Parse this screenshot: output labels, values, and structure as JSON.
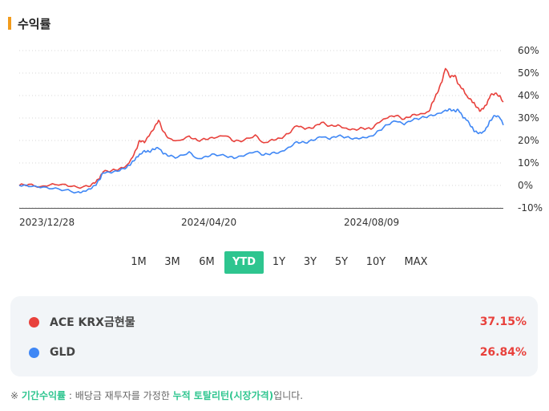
{
  "section": {
    "title": "수익률"
  },
  "chart_data": {
    "type": "line",
    "ylim": [
      -10,
      60
    ],
    "y_ticks": [
      60,
      50,
      40,
      30,
      20,
      10,
      0,
      -10
    ],
    "y_tick_labels": [
      "60%",
      "50%",
      "40%",
      "30%",
      "20%",
      "10%",
      "0%",
      "-10%"
    ],
    "x_tick_labels": [
      "2023/12/28",
      "2024/04/20",
      "2024/08/09"
    ],
    "grid": true,
    "series": [
      {
        "name": "ACE KRX금현물",
        "color": "#e8413c",
        "points": [
          [
            "2023-12-28",
            0
          ],
          [
            "2024-01-05",
            0.5
          ],
          [
            "2024-01-15",
            -0.5
          ],
          [
            "2024-01-25",
            0.8
          ],
          [
            "2024-02-05",
            0.5
          ],
          [
            "2024-02-15",
            -0.8
          ],
          [
            "2024-02-25",
            -0.5
          ],
          [
            "2024-03-01",
            1.0
          ],
          [
            "2024-03-05",
            3
          ],
          [
            "2024-03-08",
            6
          ],
          [
            "2024-03-15",
            6.5
          ],
          [
            "2024-03-22",
            7.5
          ],
          [
            "2024-03-28",
            9
          ],
          [
            "2024-04-01",
            12
          ],
          [
            "2024-04-05",
            16
          ],
          [
            "2024-04-08",
            20
          ],
          [
            "2024-04-12",
            19
          ],
          [
            "2024-04-16",
            22
          ],
          [
            "2024-04-20",
            25
          ],
          [
            "2024-04-24",
            29
          ],
          [
            "2024-04-28",
            24
          ],
          [
            "2024-05-03",
            21
          ],
          [
            "2024-05-10",
            20
          ],
          [
            "2024-05-20",
            22
          ],
          [
            "2024-05-27",
            20
          ],
          [
            "2024-06-03",
            20.5
          ],
          [
            "2024-06-10",
            21
          ],
          [
            "2024-06-20",
            22
          ],
          [
            "2024-06-27",
            19.5
          ],
          [
            "2024-07-05",
            20
          ],
          [
            "2024-07-15",
            22.5
          ],
          [
            "2024-07-22",
            19
          ],
          [
            "2024-07-29",
            20.5
          ],
          [
            "2024-08-05",
            21
          ],
          [
            "2024-08-12",
            23
          ],
          [
            "2024-08-19",
            26.5
          ],
          [
            "2024-08-26",
            25
          ],
          [
            "2024-09-02",
            25.5
          ],
          [
            "2024-09-09",
            28
          ],
          [
            "2024-09-16",
            26.5
          ],
          [
            "2024-09-23",
            27
          ],
          [
            "2024-09-30",
            25.5
          ],
          [
            "2024-10-07",
            25
          ],
          [
            "2024-10-14",
            25.5
          ],
          [
            "2024-10-21",
            25
          ],
          [
            "2024-10-28",
            28
          ],
          [
            "2024-11-04",
            30
          ],
          [
            "2024-11-11",
            31
          ],
          [
            "2024-11-18",
            29.5
          ],
          [
            "2024-11-25",
            31.5
          ],
          [
            "2024-12-02",
            32
          ],
          [
            "2024-12-09",
            33
          ],
          [
            "2024-12-12",
            37
          ],
          [
            "2024-12-16",
            41
          ],
          [
            "2024-12-20",
            46
          ],
          [
            "2024-12-23",
            52
          ],
          [
            "2024-12-27",
            48
          ],
          [
            "2024-12-31",
            49
          ],
          [
            "2025-01-03",
            45
          ],
          [
            "2025-01-07",
            43
          ],
          [
            "2025-01-10",
            40
          ],
          [
            "2025-01-14",
            38
          ],
          [
            "2025-01-17",
            36
          ],
          [
            "2025-01-21",
            33
          ],
          [
            "2025-01-24",
            34
          ],
          [
            "2025-01-27",
            36
          ],
          [
            "2025-01-30",
            40
          ],
          [
            "2025-02-03",
            41
          ],
          [
            "2025-02-07",
            40
          ],
          [
            "2025-02-10",
            37.15
          ]
        ]
      },
      {
        "name": "GLD",
        "color": "#3f87f5",
        "points": [
          [
            "2023-12-28",
            0
          ],
          [
            "2024-01-05",
            -0.5
          ],
          [
            "2024-01-15",
            -1
          ],
          [
            "2024-01-25",
            -1.5
          ],
          [
            "2024-02-05",
            -2
          ],
          [
            "2024-02-15",
            -3
          ],
          [
            "2024-02-20",
            -2.5
          ],
          [
            "2024-02-25",
            -1.5
          ],
          [
            "2024-03-01",
            0
          ],
          [
            "2024-03-05",
            2.5
          ],
          [
            "2024-03-08",
            5.5
          ],
          [
            "2024-03-15",
            5.5
          ],
          [
            "2024-03-22",
            6.5
          ],
          [
            "2024-03-28",
            8
          ],
          [
            "2024-04-01",
            10
          ],
          [
            "2024-04-05",
            12.5
          ],
          [
            "2024-04-08",
            14
          ],
          [
            "2024-04-12",
            15.5
          ],
          [
            "2024-04-16",
            15
          ],
          [
            "2024-04-20",
            16
          ],
          [
            "2024-04-24",
            16.5
          ],
          [
            "2024-04-28",
            14
          ],
          [
            "2024-05-03",
            13
          ],
          [
            "2024-05-10",
            12.5
          ],
          [
            "2024-05-20",
            15
          ],
          [
            "2024-05-27",
            12
          ],
          [
            "2024-06-03",
            13
          ],
          [
            "2024-06-10",
            14
          ],
          [
            "2024-06-20",
            13
          ],
          [
            "2024-06-27",
            12
          ],
          [
            "2024-07-05",
            13
          ],
          [
            "2024-07-15",
            15
          ],
          [
            "2024-07-22",
            13.5
          ],
          [
            "2024-07-29",
            14.5
          ],
          [
            "2024-08-05",
            15
          ],
          [
            "2024-08-12",
            17
          ],
          [
            "2024-08-19",
            19.5
          ],
          [
            "2024-08-26",
            19
          ],
          [
            "2024-09-02",
            20
          ],
          [
            "2024-09-09",
            21.5
          ],
          [
            "2024-09-16",
            20.5
          ],
          [
            "2024-09-23",
            22
          ],
          [
            "2024-09-30",
            21.5
          ],
          [
            "2024-10-07",
            21
          ],
          [
            "2024-10-14",
            21.5
          ],
          [
            "2024-10-21",
            22
          ],
          [
            "2024-10-28",
            24.5
          ],
          [
            "2024-11-04",
            27
          ],
          [
            "2024-11-11",
            28.5
          ],
          [
            "2024-11-18",
            27
          ],
          [
            "2024-11-25",
            29
          ],
          [
            "2024-12-02",
            30
          ],
          [
            "2024-12-09",
            31
          ],
          [
            "2024-12-16",
            32
          ],
          [
            "2024-12-23",
            33.5
          ],
          [
            "2024-12-27",
            34
          ],
          [
            "2024-12-31",
            33
          ],
          [
            "2025-01-03",
            33.5
          ],
          [
            "2025-01-07",
            30
          ],
          [
            "2025-01-10",
            29
          ],
          [
            "2025-01-14",
            26
          ],
          [
            "2025-01-17",
            24
          ],
          [
            "2025-01-21",
            23.5
          ],
          [
            "2025-01-24",
            24
          ],
          [
            "2025-01-27",
            26
          ],
          [
            "2025-01-30",
            29
          ],
          [
            "2025-02-03",
            31
          ],
          [
            "2025-02-07",
            30
          ],
          [
            "2025-02-10",
            26.84
          ]
        ]
      }
    ]
  },
  "tabs": [
    {
      "label": "1M",
      "active": false
    },
    {
      "label": "3M",
      "active": false
    },
    {
      "label": "6M",
      "active": false
    },
    {
      "label": "YTD",
      "active": true
    },
    {
      "label": "1Y",
      "active": false
    },
    {
      "label": "3Y",
      "active": false
    },
    {
      "label": "5Y",
      "active": false
    },
    {
      "label": "10Y",
      "active": false
    },
    {
      "label": "MAX",
      "active": false
    }
  ],
  "summary": [
    {
      "name": "ACE KRX금현물",
      "value": "37.15%",
      "dot_color": "#e8413c"
    },
    {
      "name": "GLD",
      "value": "26.84%",
      "dot_color": "#3f87f5"
    }
  ],
  "note": {
    "prefix": "※ ",
    "highlight1": "기간수익률",
    "middle": " : 배당금 재투자를 가정한 ",
    "highlight2": "누적 토탈리턴(시장가격)",
    "suffix": "입니다."
  }
}
